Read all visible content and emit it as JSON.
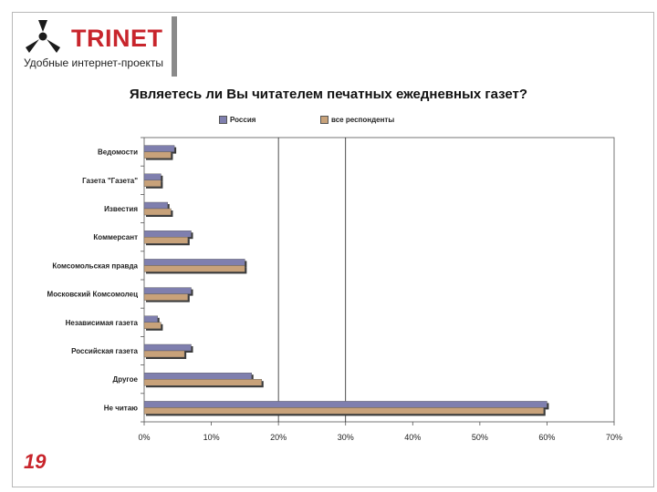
{
  "brand": {
    "name": "TRINET",
    "tagline": "Удобные интернет-проекты",
    "color": "#c8252c"
  },
  "slide": {
    "page_number": "19"
  },
  "chart_data": {
    "type": "bar",
    "orientation": "horizontal",
    "title": "Являетесь ли Вы читателем печатных ежедневных газет?",
    "categories": [
      "Ведомости",
      "Газета \"Газета\"",
      "Известия",
      "Коммерсант",
      "Комсомольская правда",
      "Московский Комсомолец",
      "Независимая газета",
      "Российская газета",
      "Другое",
      "Не читаю"
    ],
    "series": [
      {
        "name": "Россия",
        "color": "#7f7fae",
        "values": [
          4.5,
          2.5,
          3.5,
          7.0,
          15.0,
          7.0,
          2.0,
          7.0,
          16.0,
          60.0
        ]
      },
      {
        "name": "все респонденты",
        "color": "#c8a27a",
        "values": [
          4.0,
          2.5,
          4.0,
          6.5,
          15.0,
          6.5,
          2.5,
          6.0,
          17.5,
          59.5
        ]
      }
    ],
    "xlim": [
      0,
      70
    ],
    "xticks": [
      "0%",
      "10%",
      "20%",
      "30%",
      "40%",
      "50%",
      "60%",
      "70%"
    ],
    "legend_position": "top",
    "vertical_gridlines": [
      20,
      30
    ]
  }
}
